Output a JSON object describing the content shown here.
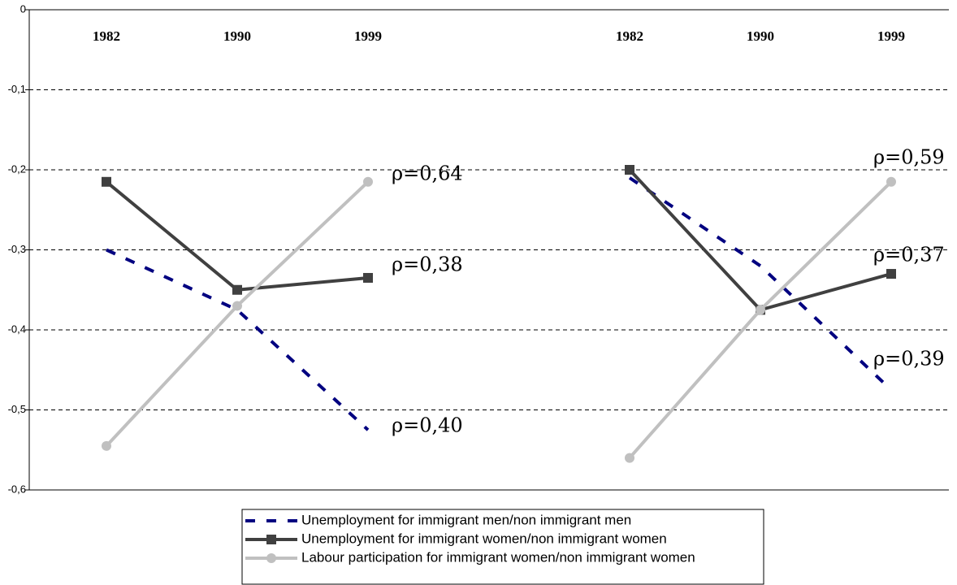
{
  "chart_data": {
    "type": "line",
    "categories": [
      "1982",
      "1990",
      "1999",
      null,
      "1982",
      "1990",
      "1999"
    ],
    "series": [
      {
        "name": "Unemployment for immigrant men/non immigrant men",
        "color": "#000080",
        "style": "dashed",
        "marker": "none",
        "values": [
          -0.3,
          -0.375,
          -0.525,
          null,
          -0.21,
          -0.32,
          -0.475
        ]
      },
      {
        "name": "Unemployment for immigrant women/non immigrant women",
        "color": "#404040",
        "style": "solid",
        "marker": "square",
        "values": [
          -0.215,
          -0.35,
          -0.335,
          null,
          -0.2,
          -0.375,
          -0.33
        ]
      },
      {
        "name": "Labour participation for immigrant women/non immigrant women",
        "color": "#c0c0c0",
        "style": "solid",
        "marker": "circle",
        "values": [
          -0.545,
          -0.37,
          -0.215,
          null,
          -0.56,
          -0.375,
          -0.215
        ]
      }
    ],
    "ylim": [
      -0.6,
      0
    ],
    "yticks": [
      0,
      {
        "value": -0.1,
        "label": "-0,1"
      },
      {
        "value": -0.2,
        "label": "-0,2"
      },
      {
        "value": -0.3,
        "label": "-0,3"
      },
      {
        "value": -0.4,
        "label": "-0,4"
      },
      {
        "value": -0.5,
        "label": "-0,5"
      },
      {
        "value": -0.6,
        "label": "-0,6"
      }
    ],
    "grid": true,
    "annotations": [
      "ρ=0,64",
      "ρ=0,38",
      "ρ=0,40",
      "ρ=0,59",
      "ρ=0,37",
      "ρ=0,39"
    ]
  }
}
